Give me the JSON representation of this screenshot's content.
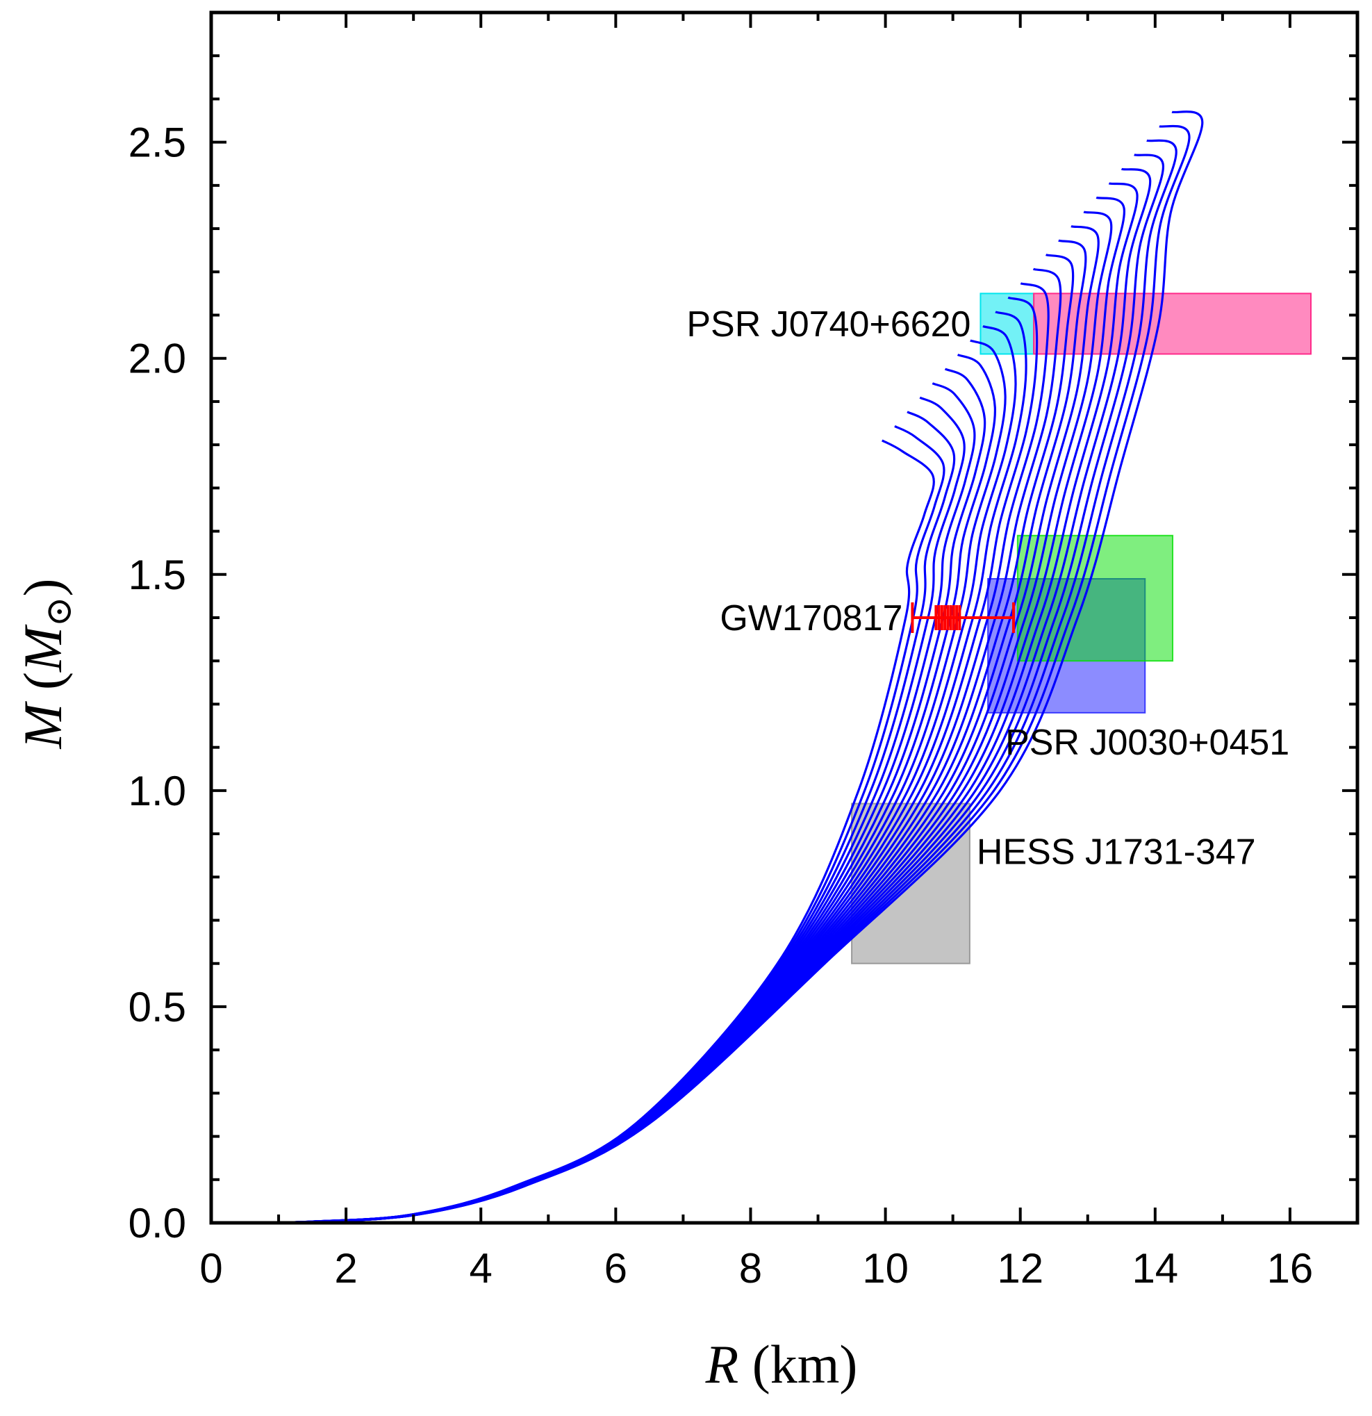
{
  "chart_data": {
    "type": "line",
    "xlabel": {
      "var": "R",
      "unit": "(km)"
    },
    "ylabel": {
      "var": "M",
      "open": "(",
      "sub_var": "M",
      "close": ")"
    },
    "xlim": [
      0,
      17
    ],
    "ylim": [
      0,
      2.8
    ],
    "xticks": [
      0,
      2,
      4,
      6,
      8,
      10,
      12,
      14,
      16
    ],
    "xtick_labels": [
      "0",
      "2",
      "4",
      "6",
      "8",
      "10",
      "12",
      "14",
      "16"
    ],
    "yticks": [
      0.0,
      0.5,
      1.0,
      1.5,
      2.0,
      2.5
    ],
    "ytick_labels": [
      "0.0",
      "0.5",
      "1.0",
      "1.5",
      "2.0",
      "2.5"
    ],
    "grid": false,
    "series_color": "#0000ff",
    "mr_family": {
      "count": 24,
      "description": "mass-radius curves",
      "first": {
        "max_mass": 1.81,
        "radius_at_max": 9.95,
        "radius_at_1p4": 10.3,
        "radius_at_1p0": 9.6
      },
      "last": {
        "max_mass": 2.57,
        "radius_at_max": 14.25,
        "radius_at_1p4": 12.85,
        "radius_at_1p0": 11.7
      }
    },
    "constraints": [
      {
        "name": "PSR J0740+6620",
        "label": "PSR J0740+6620",
        "x": [
          11.41,
          16.31
        ],
        "y": [
          2.01,
          2.15
        ],
        "color": "#00e5ee",
        "color2": "#ff2a8a",
        "split_x": 12.2
      },
      {
        "name": "PSR J0030+0451",
        "label": "PSR J0030+0451",
        "x": [
          11.52,
          13.85
        ],
        "y": [
          1.18,
          1.49
        ],
        "color": "#1a1aff"
      },
      {
        "name": "PSR J0030+0451 (alt)",
        "label": "",
        "x": [
          11.96,
          14.26
        ],
        "y": [
          1.3,
          1.59
        ],
        "color": "#00dd00"
      },
      {
        "name": "HESS J1731-347",
        "label": "HESS J1731-347",
        "x": [
          9.5,
          11.25
        ],
        "y": [
          0.6,
          0.97
        ],
        "color": "#8a8a8a"
      }
    ],
    "gw_constraint": {
      "label": "GW170817",
      "mass": 1.4,
      "r_min": 10.4,
      "r_max": 11.9,
      "r_dense": [
        10.75,
        11.1
      ],
      "color": "#ff0000"
    }
  }
}
